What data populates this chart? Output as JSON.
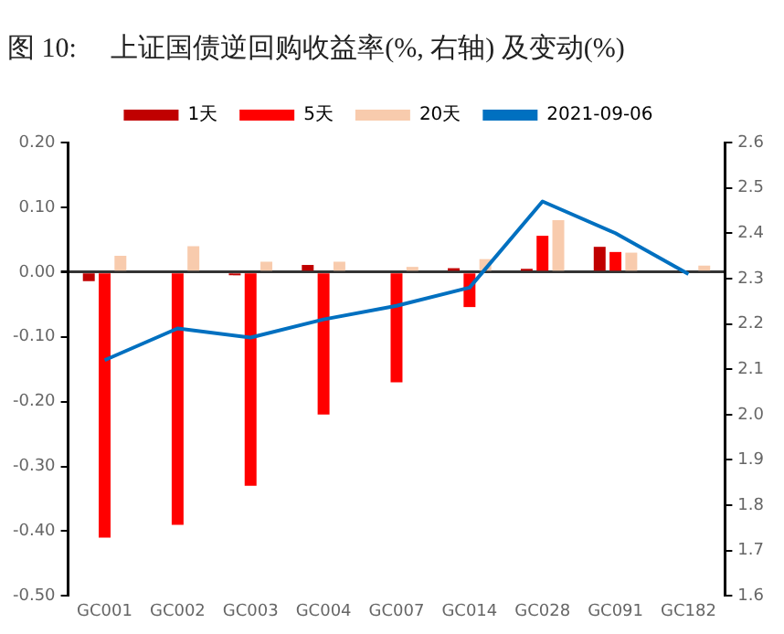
{
  "chart_data": {
    "type": "bar",
    "title": "图 10:     上证国债逆回购收益率(%, 右轴) 及变动(%)",
    "categories": [
      "GC001",
      "GC002",
      "GC003",
      "GC004",
      "GC007",
      "GC014",
      "GC028",
      "GC091",
      "GC182"
    ],
    "series": [
      {
        "name": "1天",
        "color": "#c00000",
        "values": [
          -0.014,
          null,
          -0.005,
          0.011,
          0,
          0.006,
          0.005,
          0.039,
          null
        ]
      },
      {
        "name": "5天",
        "color": "#ff0000",
        "values": [
          -0.41,
          -0.39,
          -0.33,
          -0.22,
          -0.17,
          -0.054,
          0.056,
          0.031,
          0
        ]
      },
      {
        "name": "20天",
        "color": "#f8cbad",
        "values": [
          0.025,
          0.04,
          0.016,
          0.016,
          0.008,
          0.02,
          0.08,
          0.03,
          0.01
        ]
      },
      {
        "name": "2021-09-06",
        "type": "line",
        "axis": "y2",
        "color": "#0070c0",
        "values": [
          2.12,
          2.19,
          2.17,
          2.21,
          2.24,
          2.28,
          2.47,
          2.4,
          2.31
        ]
      }
    ],
    "ylim": [
      -0.5,
      0.2
    ],
    "yticks": [
      {
        "value": -0.5,
        "label": "-0.50"
      },
      {
        "value": -0.4,
        "label": "-0.40"
      },
      {
        "value": -0.3,
        "label": "-0.30"
      },
      {
        "value": -0.2,
        "label": "-0.20"
      },
      {
        "value": -0.1,
        "label": "-0.10"
      },
      {
        "value": 0,
        "label": "0.00"
      },
      {
        "value": 0.1,
        "label": "0.10"
      },
      {
        "value": 0.2,
        "label": "0.20"
      }
    ],
    "y2lim": [
      1.6,
      2.6
    ],
    "y2ticks": [
      {
        "value": 1.6,
        "label": "1.6"
      },
      {
        "value": 1.7,
        "label": "1.7"
      },
      {
        "value": 1.8,
        "label": "1.8"
      },
      {
        "value": 1.9,
        "label": "1.9"
      },
      {
        "value": 2.0,
        "label": "2.0"
      },
      {
        "value": 2.1,
        "label": "2.1"
      },
      {
        "value": 2.2,
        "label": "2.2"
      },
      {
        "value": 2.3,
        "label": "2.3"
      },
      {
        "value": 2.4,
        "label": "2.4"
      },
      {
        "value": 2.5,
        "label": "2.5"
      },
      {
        "value": 2.6,
        "label": "2.6"
      }
    ],
    "legend": "top",
    "marker": "none",
    "line_style": "solid"
  }
}
